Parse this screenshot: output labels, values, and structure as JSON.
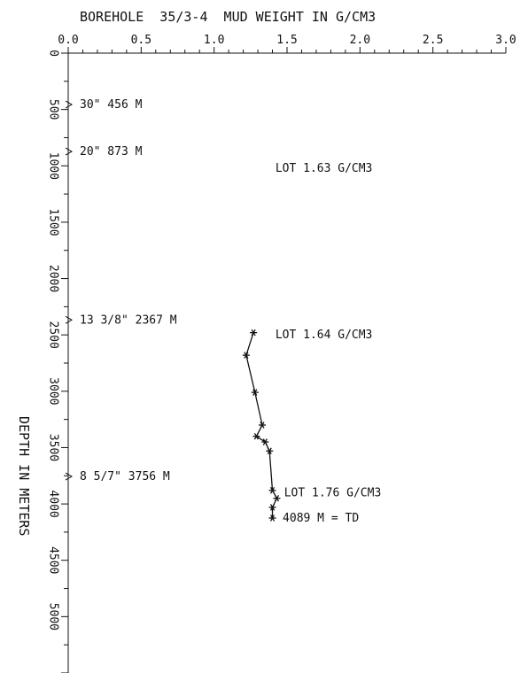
{
  "chart_data": {
    "type": "line",
    "title": "BOREHOLE  35/3-4  MUD WEIGHT IN G/CM3",
    "xlabel": "",
    "ylabel": "DEPTH IN METERS",
    "xlim": [
      0.0,
      3.0
    ],
    "ylim": [
      0,
      5500
    ],
    "x_ticks": [
      "0.0",
      "0.5",
      "1.0",
      "1.5",
      "2.0",
      "2.5",
      "3.0"
    ],
    "y_ticks": [
      "0",
      "500",
      "1000",
      "1500",
      "2000",
      "2500",
      "3000",
      "3500",
      "4000",
      "4500",
      "5000"
    ],
    "series": [
      {
        "x": [
          1.27,
          1.22,
          1.28,
          1.33,
          1.29,
          1.35,
          1.38,
          1.4,
          1.43,
          1.4,
          1.4
        ],
        "y": [
          2480,
          2680,
          3010,
          3300,
          3400,
          3450,
          3530,
          3880,
          3950,
          4030,
          4125
        ]
      }
    ],
    "casing_shoes": [
      {
        "label": "30\" 456 M",
        "depth": 456
      },
      {
        "label": "20\" 873 M",
        "depth": 873
      },
      {
        "label": "13 3/8\" 2367 M",
        "depth": 2367
      },
      {
        "label": "8 5/7\" 3756 M",
        "depth": 3756
      }
    ],
    "annotations": [
      {
        "text": "LOT 1.63 G/CM3",
        "x": 1.42,
        "y": 1020
      },
      {
        "text": "LOT 1.64 G/CM3",
        "x": 1.42,
        "y": 2500
      },
      {
        "text": "LOT 1.76 G/CM3",
        "x": 1.48,
        "y": 3900
      },
      {
        "text": "4089 M = TD",
        "x": 1.47,
        "y": 4125
      }
    ]
  }
}
